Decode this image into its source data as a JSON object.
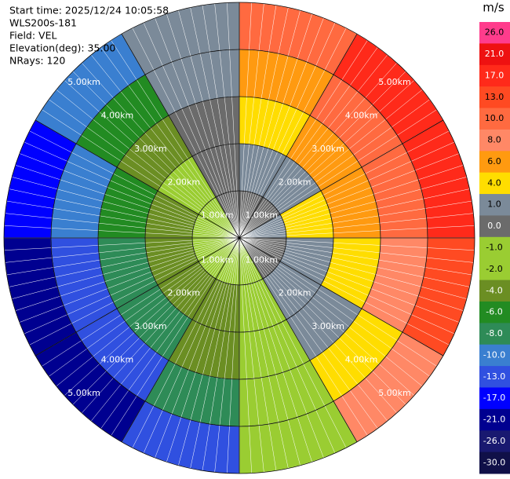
{
  "chart_data": {
    "type": "ppi",
    "header": [
      "Start time: 2025/12/24 10:05:58",
      "WLS200s-181",
      "Field: VEL",
      "Elevation(deg): 35.00",
      "NRays: 120"
    ],
    "colorbar_title": "m/s",
    "colorbar": [
      {
        "value": 26,
        "label": "26.0",
        "color": "#ff3c8c"
      },
      {
        "value": 21,
        "label": "21.0",
        "color": "#ee1111"
      },
      {
        "value": 17,
        "label": "17.0",
        "color": "#ff2a1a"
      },
      {
        "value": 13,
        "label": "13.0",
        "color": "#ff4a22"
      },
      {
        "value": 10,
        "label": "10.0",
        "color": "#ff6a40"
      },
      {
        "value": 8,
        "label": "8.0",
        "color": "#ff8866"
      },
      {
        "value": 6,
        "label": "6.0",
        "color": "#ff9a10"
      },
      {
        "value": 4,
        "label": "4.0",
        "color": "#ffdd00"
      },
      {
        "value": 1,
        "label": "1.0",
        "color": "#7b8a99"
      },
      {
        "value": 0,
        "label": "0.0",
        "color": "#6b6b6b"
      },
      {
        "value": -1,
        "label": "-1.0",
        "color": "#9acd32"
      },
      {
        "value": -2,
        "label": "-2.0",
        "color": "#9acd32"
      },
      {
        "value": -4,
        "label": "-4.0",
        "color": "#6b8e23"
      },
      {
        "value": -6,
        "label": "-6.0",
        "color": "#228b22"
      },
      {
        "value": -8,
        "label": "-8.0",
        "color": "#2e8b57"
      },
      {
        "value": -10,
        "label": "-10.0",
        "color": "#3a7fd0"
      },
      {
        "value": -13,
        "label": "-13.0",
        "color": "#3050e0"
      },
      {
        "value": -17,
        "label": "-17.0",
        "color": "#0000ff"
      },
      {
        "value": -21,
        "label": "-21.0",
        "color": "#000090"
      },
      {
        "value": -26,
        "label": "-26.0",
        "color": "#191970"
      },
      {
        "value": -30,
        "label": "-30.0",
        "color": "#101048"
      }
    ],
    "rings": [
      {
        "value": 1,
        "label": "1.00km"
      },
      {
        "value": 2,
        "label": "2.00km"
      },
      {
        "value": 3,
        "label": "3.00km"
      },
      {
        "value": 4,
        "label": "4.00km"
      },
      {
        "value": 5,
        "label": "5.00km"
      }
    ],
    "azimuths": [
      15,
      45,
      75,
      105,
      135,
      165,
      195,
      225,
      255,
      285,
      315,
      345
    ],
    "values": [
      [
        0.6,
        0.9,
        1,
        0.8,
        0.4,
        -0.1,
        -0.6,
        -0.9,
        -1,
        -0.8,
        -0.4,
        0.1
      ],
      [
        2.3,
        3.6,
        4,
        3.3,
        1.7,
        -0.4,
        -2.3,
        -3.6,
        -4,
        -3.3,
        -1.7,
        0.4
      ],
      [
        4,
        6.4,
        7,
        5.7,
        2.9,
        -0.6,
        -4,
        -6.4,
        -7,
        -5.7,
        -2.9,
        0.6
      ],
      [
        6.8,
        10.9,
        12,
        9.8,
        5,
        -1.1,
        -6.8,
        -10.9,
        -12,
        -9.8,
        -5,
        1.1
      ],
      [
        11.4,
        18.2,
        20,
        16.4,
        8.4,
        -1.8,
        -11.4,
        -18.2,
        -20,
        -16.4,
        -8.4,
        1.8
      ]
    ]
  }
}
